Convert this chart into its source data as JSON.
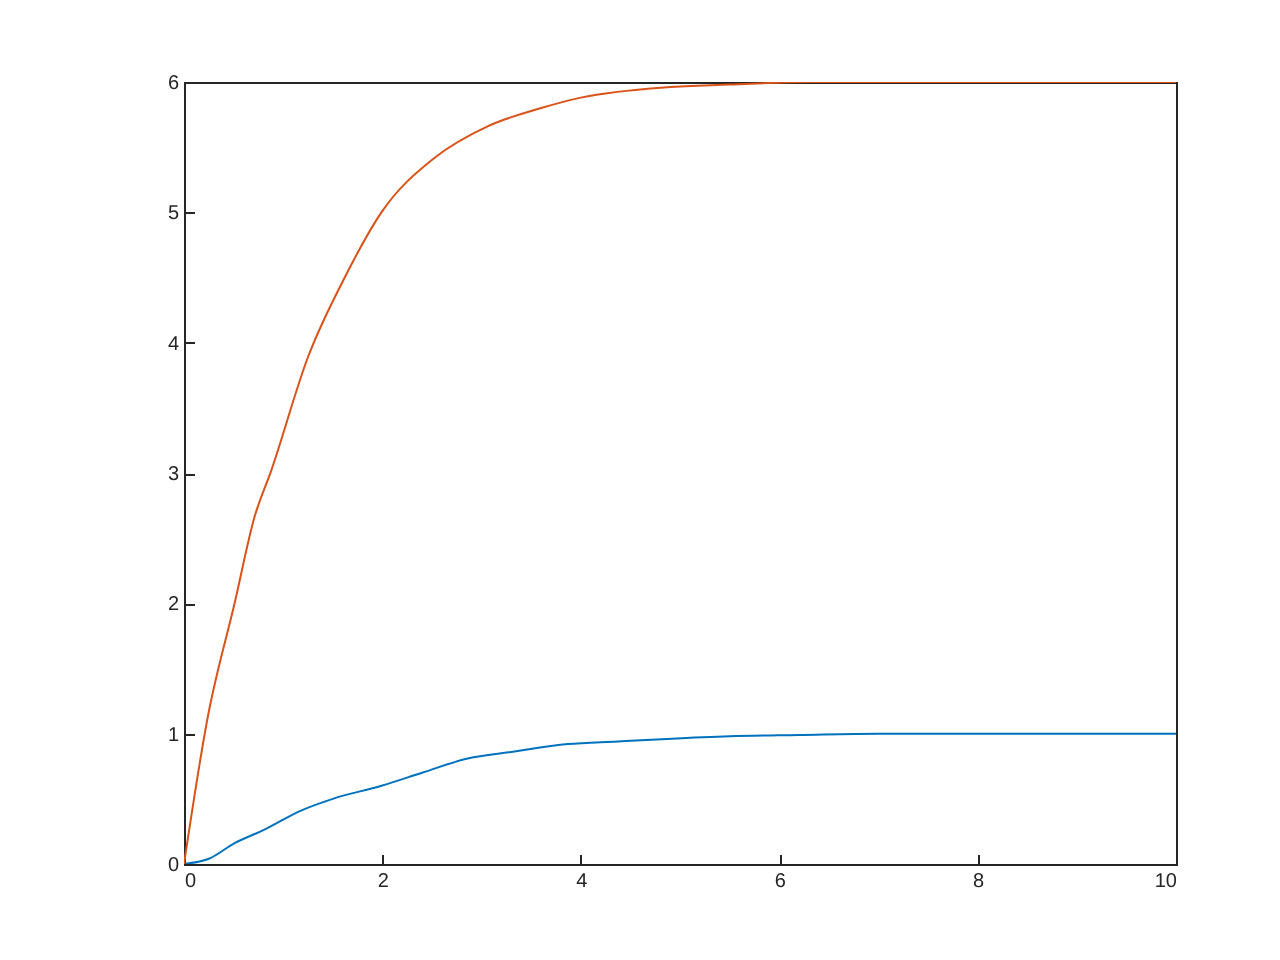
{
  "chart_data": {
    "type": "line",
    "xlim": [
      0,
      10
    ],
    "xticks": [
      0,
      2,
      4,
      6,
      8,
      10
    ],
    "ylim": [
      0,
      6
    ],
    "yticks": [
      0,
      1,
      2,
      3,
      4,
      5,
      6
    ],
    "grid": false,
    "line_style": "solid",
    "marker": "none",
    "series": [
      {
        "color": "#0072bd",
        "x": [
          0,
          0.25,
          0.51,
          0.8,
          1.18,
          1.5,
          1.99,
          2.4,
          2.86,
          3.3,
          3.87,
          4.37,
          4.87,
          5.5,
          6.2,
          7,
          8,
          9,
          10
        ],
        "values": [
          0,
          0.04,
          0.16,
          0.26,
          0.41,
          0.5,
          0.6,
          0.7,
          0.81,
          0.86,
          0.92,
          0.94,
          0.96,
          0.98,
          0.99,
          1,
          1,
          1,
          1
        ]
      },
      {
        "color": "#d95319",
        "x": [
          0,
          0.24,
          0.51,
          0.71,
          0.88,
          1.25,
          1.62,
          1.99,
          2.53,
          3.06,
          3.6,
          4.0,
          4.87,
          5.5,
          6.3,
          7,
          8,
          9,
          10
        ],
        "values": [
          0,
          1.13,
          2.0,
          2.66,
          3.02,
          3.89,
          4.5,
          5.0,
          5.42,
          5.66,
          5.8,
          5.88,
          5.96,
          5.98,
          6,
          6,
          6,
          6,
          6
        ]
      }
    ]
  }
}
